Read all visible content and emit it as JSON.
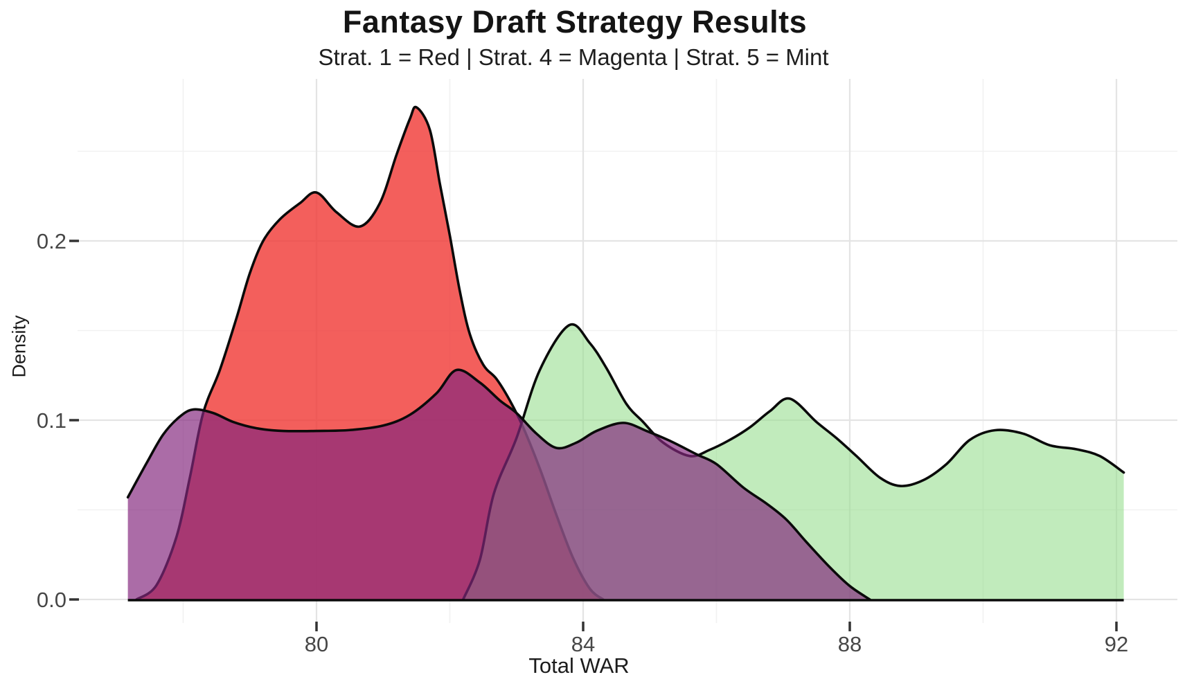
{
  "header": {
    "title": "Fantasy Draft Strategy Results",
    "subtitle": "Strat. 1 = Red | Strat. 4 = Magenta | Strat. 5 = Mint"
  },
  "chart_data": {
    "type": "area",
    "title": "Fantasy Draft Strategy Results",
    "subtitle": "Strat. 1 = Red | Strat. 4 = Magenta | Strat. 5 = Mint",
    "xlabel": "Total WAR",
    "ylabel": "Density",
    "x_domain": [
      77.17,
      92.11
    ],
    "ylim": [
      0,
      0.29
    ],
    "grid": "on",
    "legend_position": "none (encoded in subtitle)",
    "x_ticks_major": [
      80,
      84,
      88,
      92
    ],
    "x_tick_labels": [
      "80",
      "84",
      "88",
      "92"
    ],
    "x_ticks_minor": [
      78,
      82,
      86,
      90
    ],
    "y_ticks_major": [
      0,
      0.1,
      0.2
    ],
    "y_tick_labels": [
      "0.0",
      "0.1",
      "0.2"
    ],
    "y_ticks_minor": [
      0.05,
      0.15,
      0.25
    ],
    "series": [
      {
        "name": "Strategy 1",
        "legend": "Strat. 1 = Red",
        "color_name": "Red",
        "fill": "#f03c38",
        "fill_opacity": 0.82,
        "stroke": "#0a0a0a",
        "z_order": 1,
        "points": [
          [
            77.3,
            0
          ],
          [
            77.6,
            0.008
          ],
          [
            77.9,
            0.035
          ],
          [
            78.1,
            0.068
          ],
          [
            78.3,
            0.104
          ],
          [
            78.55,
            0.128
          ],
          [
            78.8,
            0.157
          ],
          [
            79.0,
            0.182
          ],
          [
            79.2,
            0.2
          ],
          [
            79.45,
            0.212
          ],
          [
            79.75,
            0.221
          ],
          [
            80.0,
            0.227
          ],
          [
            80.3,
            0.216
          ],
          [
            80.65,
            0.208
          ],
          [
            80.95,
            0.221
          ],
          [
            81.2,
            0.248
          ],
          [
            81.4,
            0.268
          ],
          [
            81.5,
            0.2745
          ],
          [
            81.7,
            0.262
          ],
          [
            81.85,
            0.232
          ],
          [
            82.0,
            0.203
          ],
          [
            82.15,
            0.172
          ],
          [
            82.3,
            0.148
          ],
          [
            82.5,
            0.131
          ],
          [
            82.7,
            0.123
          ],
          [
            82.9,
            0.111
          ],
          [
            83.1,
            0.096
          ],
          [
            83.35,
            0.073
          ],
          [
            83.6,
            0.047
          ],
          [
            83.85,
            0.023
          ],
          [
            84.1,
            0.006
          ],
          [
            84.3,
            0
          ]
        ]
      },
      {
        "name": "Strategy 5",
        "legend": "Strat. 5 = Mint",
        "color_name": "Mint",
        "fill": "#97dd90",
        "fill_opacity": 0.6,
        "stroke": "#0a0a0a",
        "z_order": 2,
        "points": [
          [
            82.2,
            0
          ],
          [
            82.45,
            0.022
          ],
          [
            82.66,
            0.059
          ],
          [
            83.0,
            0.09
          ],
          [
            83.35,
            0.128
          ],
          [
            83.79,
            0.153
          ],
          [
            84.1,
            0.143
          ],
          [
            84.35,
            0.129
          ],
          [
            84.65,
            0.109
          ],
          [
            84.9,
            0.099
          ],
          [
            85.2,
            0.0875
          ],
          [
            85.6,
            0.08
          ],
          [
            85.9,
            0.0835
          ],
          [
            86.2,
            0.089
          ],
          [
            86.5,
            0.096
          ],
          [
            86.8,
            0.105
          ],
          [
            87.1,
            0.112
          ],
          [
            87.5,
            0.099
          ],
          [
            87.8,
            0.09
          ],
          [
            88.1,
            0.08
          ],
          [
            88.45,
            0.068
          ],
          [
            88.76,
            0.0633
          ],
          [
            89.1,
            0.0665
          ],
          [
            89.45,
            0.0755
          ],
          [
            89.8,
            0.089
          ],
          [
            90.18,
            0.0944
          ],
          [
            90.6,
            0.0925
          ],
          [
            91.0,
            0.086
          ],
          [
            91.4,
            0.0838
          ],
          [
            91.75,
            0.08
          ],
          [
            92.11,
            0.0708
          ]
        ]
      },
      {
        "name": "Strategy 4",
        "legend": "Strat. 4 = Magenta",
        "color_name": "Magenta",
        "fill": "#83267e",
        "fill_opacity": 0.68,
        "stroke": "#0a0a0a",
        "z_order": 3,
        "points": [
          [
            77.17,
            0.057
          ],
          [
            77.45,
            0.076
          ],
          [
            77.7,
            0.092
          ],
          [
            77.95,
            0.102
          ],
          [
            78.16,
            0.106
          ],
          [
            78.45,
            0.104
          ],
          [
            78.75,
            0.099
          ],
          [
            79.1,
            0.0955
          ],
          [
            79.5,
            0.094
          ],
          [
            80.0,
            0.094
          ],
          [
            80.5,
            0.0945
          ],
          [
            81.0,
            0.097
          ],
          [
            81.4,
            0.103
          ],
          [
            81.8,
            0.115
          ],
          [
            82.1,
            0.128
          ],
          [
            82.45,
            0.121
          ],
          [
            82.75,
            0.111
          ],
          [
            83.0,
            0.104
          ],
          [
            83.3,
            0.0925
          ],
          [
            83.6,
            0.0845
          ],
          [
            83.9,
            0.0875
          ],
          [
            84.2,
            0.094
          ],
          [
            84.6,
            0.0985
          ],
          [
            84.95,
            0.094
          ],
          [
            85.3,
            0.0885
          ],
          [
            85.7,
            0.081
          ],
          [
            86.0,
            0.0755
          ],
          [
            86.4,
            0.0625
          ],
          [
            86.75,
            0.0535
          ],
          [
            87.05,
            0.0445
          ],
          [
            87.35,
            0.032
          ],
          [
            87.7,
            0.018
          ],
          [
            88.0,
            0.0075
          ],
          [
            88.3,
            0
          ]
        ]
      }
    ],
    "style": {
      "background": "#ffffff",
      "grid_major_color": "#e4e4e4",
      "grid_minor_color": "#f1f1f1",
      "tick_color": "#333333",
      "baseline_color": "#0a0a0a",
      "curve_stroke_width": 3.6
    }
  }
}
